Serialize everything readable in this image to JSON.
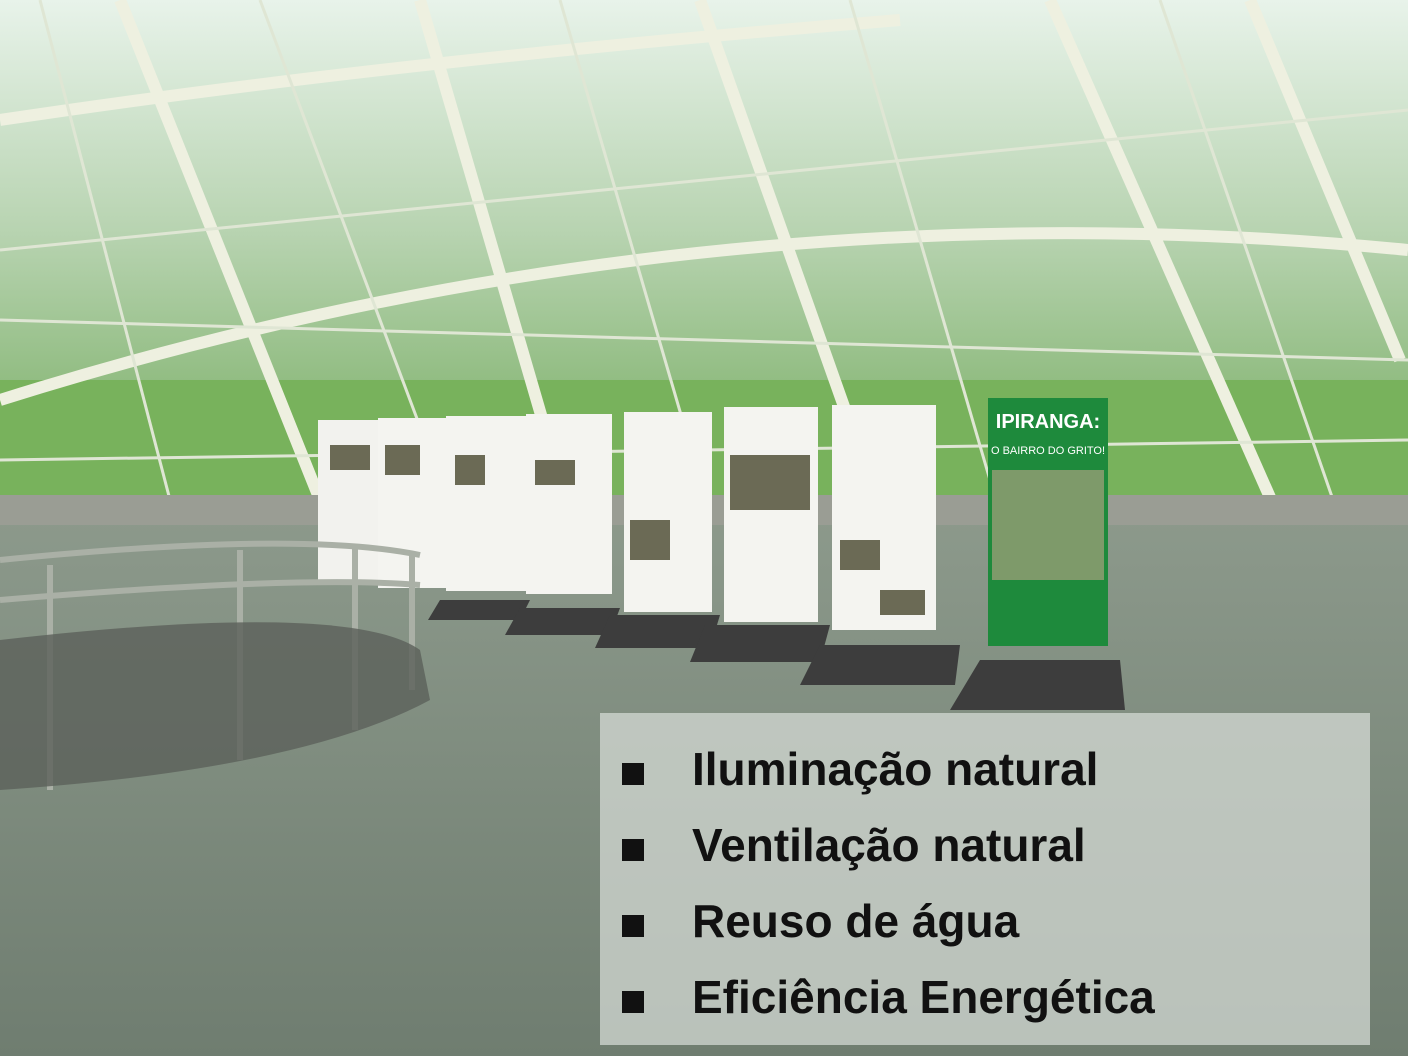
{
  "photo": {
    "sign_title": "IPIRANGA:",
    "sign_subtitle": "O BAIRRO DO GRITO!"
  },
  "bullets": [
    "Iluminação natural",
    "Ventilação natural",
    "Reuso de água",
    "Eficiência Energética"
  ]
}
